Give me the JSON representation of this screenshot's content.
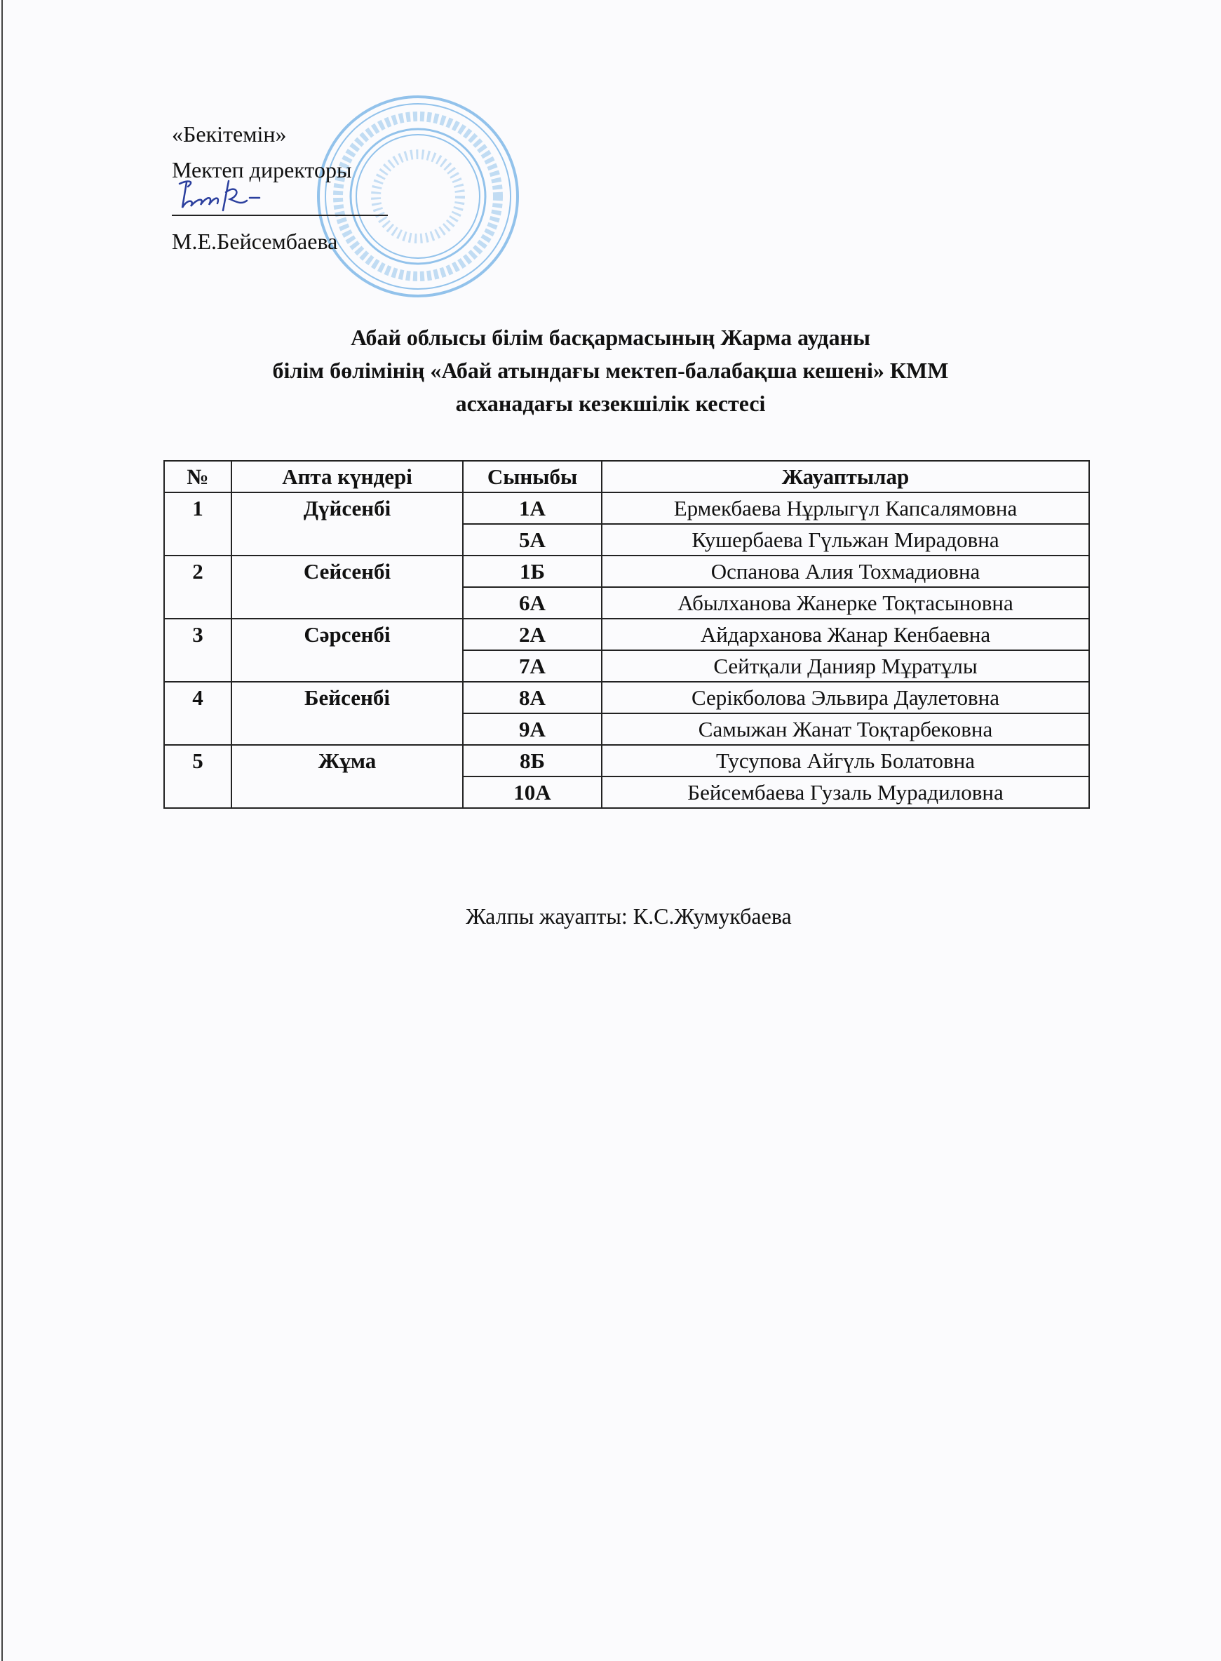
{
  "approval": {
    "line1": "«Бекітемін»",
    "line2": "Мектеп директоры",
    "name": "М.Е.Бейсембаева",
    "signature": "Бейс"
  },
  "stamp": {
    "color": "#5fa8e0"
  },
  "title": {
    "line1": "Абай облысы білім басқармасының Жарма ауданы",
    "line2": "білім бөлімінің «Абай атындағы мектеп-балабақша кешені» КММ",
    "line3": "асханадағы кезекшілік кестесі"
  },
  "table": {
    "headers": [
      "№",
      "Апта күндері",
      "Сыныбы",
      "Жауаптылар"
    ],
    "groups": [
      {
        "num": "1",
        "day": "Дүйсенбі",
        "rows": [
          {
            "class": "1А",
            "person": "Ермекбаева Нұрлыгүл Капсалямовна"
          },
          {
            "class": "5А",
            "person": "Кушербаева Гүльжан Мирадовна"
          }
        ]
      },
      {
        "num": "2",
        "day": "Сейсенбі",
        "rows": [
          {
            "class": "1Б",
            "person": "Оспанова Алия Тохмадиовна"
          },
          {
            "class": "6А",
            "person": "Абылханова Жанерке Тоқтасыновна"
          }
        ]
      },
      {
        "num": "3",
        "day": "Сәрсенбі",
        "rows": [
          {
            "class": "2А",
            "person": "Айдарханова Жанар Кенбаевна"
          },
          {
            "class": "7А",
            "person": "Сейтқали Данияр Мұратұлы"
          }
        ]
      },
      {
        "num": "4",
        "day": "Бейсенбі",
        "rows": [
          {
            "class": "8А",
            "person": "Серікболова Эльвира Даулетовна"
          },
          {
            "class": "9А",
            "person": "Самыжан Жанат Тоқтарбековна"
          }
        ]
      },
      {
        "num": "5",
        "day": "Жұма",
        "rows": [
          {
            "class": "8Б",
            "person": "Тусупова Айгүль Болатовна"
          },
          {
            "class": "10А",
            "person": "Бейсембаева Гузаль Мурадиловна"
          }
        ]
      }
    ]
  },
  "footer": {
    "responsible": "Жалпы жауапты: К.С.Жумукбаева"
  }
}
